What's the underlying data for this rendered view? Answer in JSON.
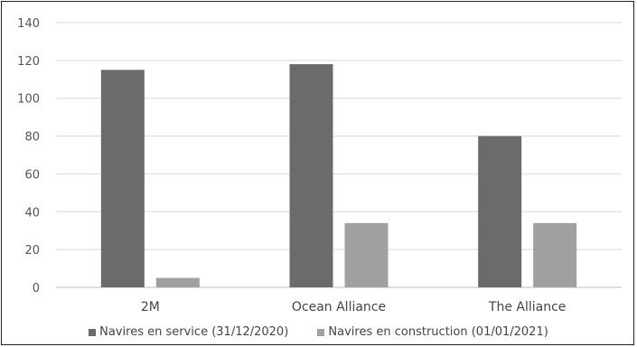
{
  "chart_data": {
    "type": "bar",
    "title": "",
    "xlabel": "",
    "ylabel": "",
    "ylim": [
      0,
      140
    ],
    "yticks": [
      0,
      20,
      40,
      60,
      80,
      100,
      120,
      140
    ],
    "categories": [
      "2M",
      "Ocean Alliance",
      "The Alliance"
    ],
    "series": [
      {
        "name": "Navires en service (31/12/2020)",
        "values": [
          115,
          118,
          80
        ],
        "color": "#6b6b6b"
      },
      {
        "name": "Navires en construction (01/01/2021)",
        "values": [
          5,
          34,
          34
        ],
        "color": "#a0a0a0"
      }
    ],
    "grid": true,
    "legend_position": "bottom"
  }
}
